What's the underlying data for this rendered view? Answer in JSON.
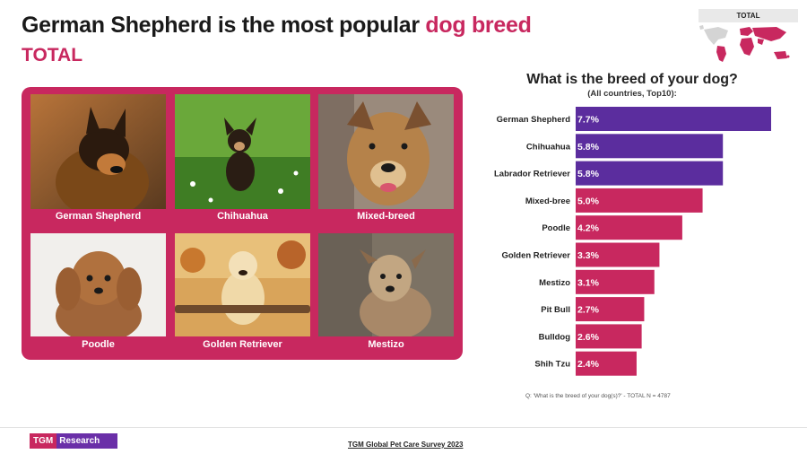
{
  "header": {
    "title_main": "German Shepherd is the most popular ",
    "title_accent": "dog breed",
    "subtitle": "TOTAL"
  },
  "map": {
    "label": "TOTAL"
  },
  "tiles": [
    {
      "label": "German Shepherd"
    },
    {
      "label": "Chihuahua"
    },
    {
      "label": "Mixed-breed"
    },
    {
      "label": "Poodle"
    },
    {
      "label": "Golden Retriever"
    },
    {
      "label": "Mestizo"
    }
  ],
  "chart_data": {
    "type": "bar",
    "orientation": "horizontal",
    "title": "What is the breed of your dog?",
    "subtitle": "(All countries, Top10):",
    "categories": [
      "German Shepherd",
      "Chihuahua",
      "Labrador Retriever",
      "Mixed-bree",
      "Poodle",
      "Golden Retriever",
      "Mestizo",
      "Pit Bull",
      "Bulldog",
      "Shih Tzu"
    ],
    "values": [
      7.7,
      5.8,
      5.8,
      5.0,
      4.2,
      3.3,
      3.1,
      2.7,
      2.6,
      2.4
    ],
    "value_labels": [
      "7.7%",
      "5.8%",
      "5.8%",
      "5.0%",
      "4.2%",
      "3.3%",
      "3.1%",
      "2.7%",
      "2.6%",
      "2.4%"
    ],
    "colors": [
      "#5b2d9e",
      "#5b2d9e",
      "#5b2d9e",
      "#c8285f",
      "#c8285f",
      "#c8285f",
      "#c8285f",
      "#c8285f",
      "#c8285f",
      "#c8285f"
    ],
    "xlim": [
      0,
      7.7
    ],
    "legend": "none",
    "grid": false
  },
  "note": "Q: 'What is the breed of your dog(s)?' - TOTAL N = 4787",
  "footer": {
    "logo_mark": "TGM",
    "logo_text": "Research",
    "survey": "TGM Global Pet Care Survey 2023"
  },
  "colors": {
    "accent": "#c8285f",
    "purple": "#5b2d9e",
    "panel": "#c8285f"
  }
}
